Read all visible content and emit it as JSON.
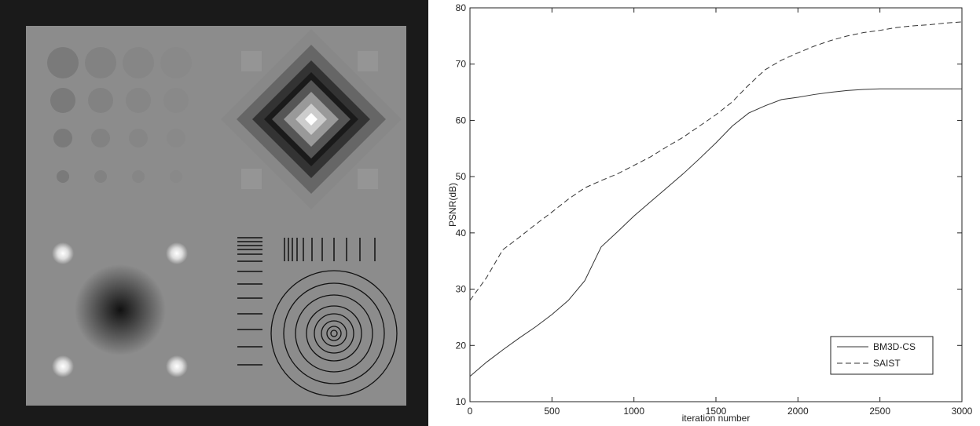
{
  "chart_data": {
    "type": "line",
    "ylabel": "PSNR(dB)",
    "xlabel": "iteration number",
    "x": [
      0,
      100,
      200,
      300,
      400,
      500,
      600,
      700,
      800,
      900,
      1000,
      1100,
      1200,
      1300,
      1400,
      1500,
      1600,
      1700,
      1800,
      1900,
      2000,
      2100,
      2200,
      2300,
      2400,
      2500,
      2600,
      2700,
      2800,
      2900,
      3000
    ],
    "series": [
      {
        "name": "BM3D-CS",
        "color": "#333333",
        "linestyle": "solid",
        "values": [
          14.5,
          17,
          19.2,
          21.3,
          23.3,
          25.5,
          28,
          31.5,
          37.5,
          40.2,
          43,
          45.5,
          48,
          50.5,
          53.2,
          56,
          59,
          61.3,
          62.6,
          63.7,
          64.1,
          64.6,
          65,
          65.3,
          65.5,
          65.6,
          65.6,
          65.6,
          65.6,
          65.6,
          65.6
        ]
      },
      {
        "name": "SAIST",
        "color": "#333333",
        "linestyle": "dashed",
        "values": [
          28,
          32,
          37,
          39.2,
          41.5,
          43.7,
          46,
          48,
          49.3,
          50.5,
          52,
          53.5,
          55.3,
          57,
          59,
          61,
          63.3,
          66.3,
          69,
          70.7,
          72,
          73.2,
          74.2,
          75,
          75.6,
          76,
          76.5,
          76.8,
          77,
          77.3,
          77.5
        ]
      }
    ],
    "xlim": [
      0,
      3000
    ],
    "xticks": [
      0,
      500,
      1000,
      1500,
      2000,
      2500,
      3000
    ],
    "ylim": [
      10,
      80
    ],
    "yticks": [
      10,
      20,
      30,
      40,
      50,
      60,
      70,
      80
    ],
    "legend": "lower right",
    "grid": false
  }
}
